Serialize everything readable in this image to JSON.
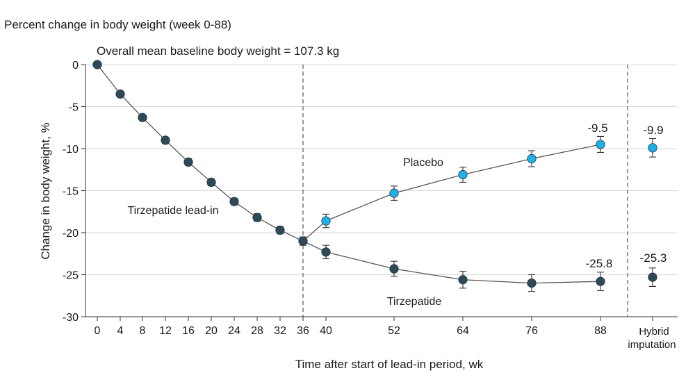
{
  "chart_data": {
    "type": "line",
    "title": "Percent change in body weight (week 0-88)",
    "subtitle": "Overall mean baseline body weight = 107.3 kg",
    "xlabel": "Time after start of lead-in period, wk",
    "ylabel": "Change in body weight, %",
    "ylim": [
      -30,
      0
    ],
    "yticks": [
      0,
      -5,
      -10,
      -15,
      -20,
      -25,
      -30
    ],
    "xticks": [
      0,
      4,
      8,
      12,
      16,
      20,
      24,
      28,
      32,
      36,
      40,
      52,
      64,
      76,
      88
    ],
    "extra_category": {
      "line1": "Hybrid",
      "line2": "imputation"
    },
    "grid": true,
    "colors": {
      "tirzepatide": "#2e4a57",
      "placebo": "#1fb1e6",
      "grid": "#d9d9d9",
      "line": "#555555"
    },
    "series": [
      {
        "name": "Tirzepatide lead-in",
        "color": "#2e4a57",
        "x": [
          0,
          4,
          8,
          12,
          16,
          20,
          24,
          28,
          32,
          36
        ],
        "values": [
          0,
          -3.5,
          -6.3,
          -9.0,
          -11.6,
          -14.0,
          -16.3,
          -18.2,
          -19.7,
          -21.0
        ],
        "err": [
          0,
          0,
          0,
          0.35,
          0.4,
          0.4,
          0.4,
          0.45,
          0.45,
          0.5
        ]
      },
      {
        "name": "Placebo",
        "color": "#1fb1e6",
        "x": [
          36,
          40,
          52,
          64,
          76,
          88
        ],
        "values": [
          -21.0,
          -18.6,
          -15.3,
          -13.1,
          -11.2,
          -9.5
        ],
        "err": [
          0,
          0.8,
          0.85,
          0.9,
          0.95,
          0.95
        ]
      },
      {
        "name": "Tirzepatide",
        "color": "#2e4a57",
        "x": [
          36,
          40,
          52,
          64,
          76,
          88
        ],
        "values": [
          -21.0,
          -22.3,
          -24.3,
          -25.6,
          -26.0,
          -25.8
        ],
        "err": [
          0,
          0.8,
          0.9,
          1.0,
          1.0,
          1.1
        ]
      }
    ],
    "hybrid_imputation": [
      {
        "name": "Placebo",
        "value": -9.9,
        "err": 1.1,
        "color": "#1fb1e6",
        "label": "-9.9"
      },
      {
        "name": "Tirzepatide",
        "value": -25.3,
        "err": 1.1,
        "color": "#2e4a57",
        "label": "-25.3"
      }
    ],
    "endpoint_labels": {
      "placebo_88": "-9.5",
      "tirzepatide_88": "-25.8"
    },
    "series_labels": {
      "lead_in": "Tirzepatide lead-in",
      "placebo": "Placebo",
      "tirzepatide": "Tirzepatide"
    },
    "vertical_reference_lines": [
      36,
      "hybrid-separator"
    ]
  }
}
